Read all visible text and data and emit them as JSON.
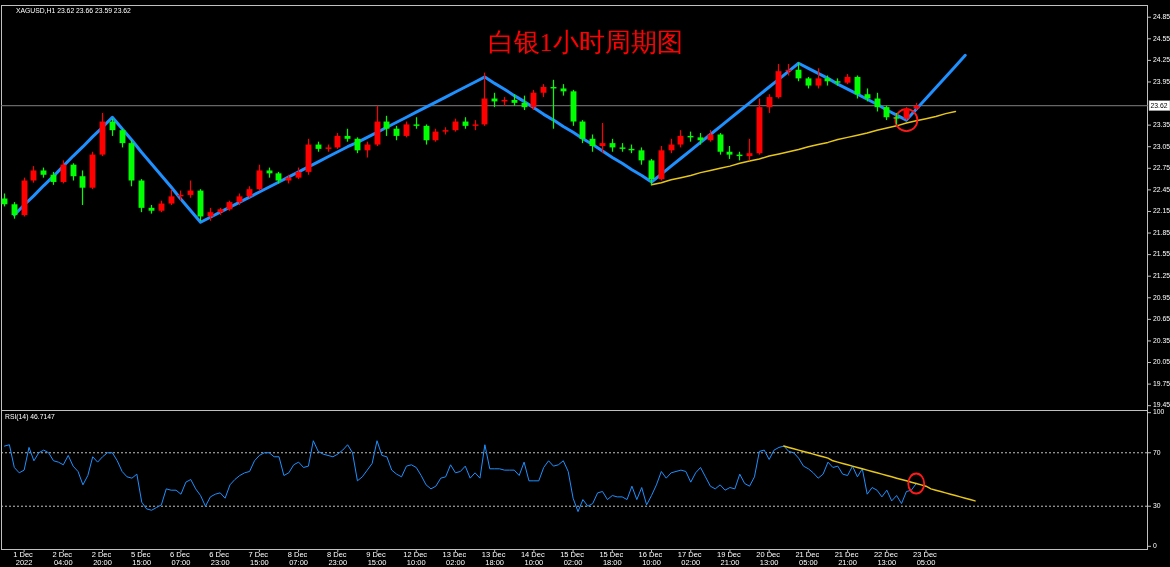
{
  "chart_data": [
    {
      "type": "candlestick",
      "title": "白银1小时周期图",
      "subtitle": "XAGUSD,H1 23.62 23.66 23.59 23.62",
      "categories": [
        null,
        null,
        null,
        null,
        null,
        null,
        null,
        null,
        null,
        null,
        null,
        null,
        null,
        null,
        null,
        null,
        null,
        null,
        null,
        null,
        null,
        null,
        null,
        null,
        null,
        null,
        null,
        null,
        null,
        null,
        null,
        null,
        null,
        null,
        null,
        null,
        null,
        null,
        null,
        null,
        null,
        null,
        null,
        null,
        null,
        null,
        null,
        null,
        null,
        null,
        null,
        null,
        null,
        null,
        null,
        null,
        null,
        null,
        null,
        null,
        null,
        null,
        null,
        null,
        null,
        null,
        null,
        null,
        null,
        null,
        null,
        null,
        null,
        null,
        null,
        null,
        null,
        null,
        null,
        null,
        null,
        null,
        null,
        null,
        null,
        null,
        null,
        null,
        null,
        null,
        null,
        null,
        null,
        null,
        null,
        null,
        null,
        null,
        null,
        null,
        null,
        null,
        null,
        null,
        null,
        null,
        null,
        null,
        null,
        null,
        null,
        null,
        null,
        null,
        null,
        null,
        null
      ],
      "ohlc": [
        [
          22.33,
          22.4,
          22.22,
          22.25
        ],
        [
          22.25,
          22.28,
          22.05,
          22.1
        ],
        [
          22.1,
          22.62,
          22.08,
          22.58
        ],
        [
          22.58,
          22.78,
          22.55,
          22.72
        ],
        [
          22.72,
          22.76,
          22.62,
          22.66
        ],
        [
          22.66,
          22.7,
          22.52,
          22.56
        ],
        [
          22.56,
          22.86,
          22.54,
          22.8
        ],
        [
          22.8,
          22.82,
          22.58,
          22.64
        ],
        [
          22.64,
          22.72,
          22.24,
          22.48
        ],
        [
          22.48,
          22.98,
          22.46,
          22.94
        ],
        [
          22.94,
          23.52,
          22.92,
          23.4
        ],
        [
          23.4,
          23.44,
          23.2,
          23.28
        ],
        [
          23.28,
          23.3,
          23.04,
          23.1
        ],
        [
          23.1,
          23.14,
          22.5,
          22.58
        ],
        [
          22.58,
          22.6,
          22.14,
          22.2
        ],
        [
          22.2,
          22.24,
          22.12,
          22.16
        ],
        [
          22.16,
          22.3,
          22.14,
          22.26
        ],
        [
          22.26,
          22.46,
          22.24,
          22.36
        ],
        [
          22.36,
          22.44,
          22.3,
          22.38
        ],
        [
          22.38,
          22.58,
          22.34,
          22.44
        ],
        [
          22.44,
          22.46,
          22.02,
          22.08
        ],
        [
          22.08,
          22.2,
          22.02,
          22.14
        ],
        [
          22.14,
          22.2,
          22.1,
          22.18
        ],
        [
          22.18,
          22.3,
          22.16,
          22.28
        ],
        [
          22.28,
          22.4,
          22.24,
          22.36
        ],
        [
          22.36,
          22.5,
          22.34,
          22.46
        ],
        [
          22.46,
          22.8,
          22.44,
          22.72
        ],
        [
          22.72,
          22.76,
          22.62,
          22.68
        ],
        [
          22.68,
          22.7,
          22.54,
          22.58
        ],
        [
          22.58,
          22.66,
          22.54,
          22.62
        ],
        [
          22.62,
          22.76,
          22.6,
          22.7
        ],
        [
          22.7,
          23.16,
          22.66,
          23.08
        ],
        [
          23.08,
          23.12,
          22.98,
          23.02
        ],
        [
          23.02,
          23.08,
          22.98,
          23.04
        ],
        [
          23.04,
          23.24,
          23.02,
          23.2
        ],
        [
          23.2,
          23.3,
          23.12,
          23.16
        ],
        [
          23.16,
          23.18,
          22.96,
          23.0
        ],
        [
          23.0,
          23.12,
          22.9,
          23.08
        ],
        [
          23.08,
          23.62,
          23.06,
          23.4
        ],
        [
          23.4,
          23.48,
          23.2,
          23.3
        ],
        [
          23.3,
          23.34,
          23.14,
          23.2
        ],
        [
          23.2,
          23.4,
          23.18,
          23.36
        ],
        [
          23.36,
          23.46,
          23.3,
          23.34
        ],
        [
          23.34,
          23.36,
          23.08,
          23.14
        ],
        [
          23.14,
          23.3,
          23.12,
          23.26
        ],
        [
          23.26,
          23.32,
          23.22,
          23.28
        ],
        [
          23.28,
          23.44,
          23.26,
          23.4
        ],
        [
          23.4,
          23.46,
          23.3,
          23.34
        ],
        [
          23.34,
          23.42,
          23.28,
          23.36
        ],
        [
          23.36,
          24.08,
          23.34,
          23.72
        ],
        [
          23.72,
          23.8,
          23.6,
          23.68
        ],
        [
          23.68,
          23.74,
          23.62,
          23.7
        ],
        [
          23.7,
          23.78,
          23.62,
          23.66
        ],
        [
          23.66,
          23.76,
          23.56,
          23.6
        ],
        [
          23.6,
          23.84,
          23.56,
          23.8
        ],
        [
          23.8,
          23.92,
          23.74,
          23.88
        ],
        [
          23.88,
          23.98,
          23.3,
          23.86
        ],
        [
          23.86,
          23.92,
          23.76,
          23.82
        ],
        [
          23.82,
          23.84,
          23.34,
          23.4
        ],
        [
          23.4,
          23.42,
          23.1,
          23.16
        ],
        [
          23.16,
          23.22,
          22.98,
          23.06
        ],
        [
          23.06,
          23.38,
          22.96,
          23.1
        ],
        [
          23.1,
          23.16,
          22.98,
          23.04
        ],
        [
          23.04,
          23.1,
          22.98,
          23.02
        ],
        [
          23.02,
          23.08,
          22.96,
          23.0
        ],
        [
          23.0,
          23.04,
          22.8,
          22.86
        ],
        [
          22.86,
          22.88,
          22.52,
          22.6
        ],
        [
          22.6,
          23.06,
          22.58,
          23.0
        ],
        [
          23.0,
          23.16,
          22.96,
          23.08
        ],
        [
          23.08,
          23.28,
          23.04,
          23.2
        ],
        [
          23.2,
          23.26,
          23.12,
          23.18
        ],
        [
          23.18,
          23.24,
          23.08,
          23.14
        ],
        [
          23.14,
          23.28,
          23.12,
          23.22
        ],
        [
          23.22,
          23.24,
          22.94,
          22.98
        ],
        [
          22.98,
          23.06,
          22.88,
          22.94
        ],
        [
          22.94,
          22.98,
          22.86,
          22.92
        ],
        [
          22.92,
          23.16,
          22.86,
          22.96
        ],
        [
          22.96,
          23.72,
          22.94,
          23.6
        ],
        [
          23.6,
          23.78,
          23.52,
          23.74
        ],
        [
          23.74,
          24.2,
          23.72,
          24.1
        ],
        [
          24.1,
          24.2,
          24.04,
          24.12
        ],
        [
          24.12,
          24.22,
          23.96,
          24.0
        ],
        [
          24.0,
          24.02,
          23.86,
          23.9
        ],
        [
          23.9,
          24.14,
          23.86,
          24.0
        ],
        [
          24.0,
          24.04,
          23.9,
          23.96
        ],
        [
          23.96,
          24.0,
          23.9,
          23.94
        ],
        [
          23.94,
          24.06,
          23.92,
          24.02
        ],
        [
          24.02,
          24.04,
          23.72,
          23.78
        ],
        [
          23.78,
          23.86,
          23.68,
          23.72
        ],
        [
          23.72,
          23.8,
          23.54,
          23.6
        ],
        [
          23.6,
          23.62,
          23.42,
          23.46
        ],
        [
          23.46,
          23.52,
          23.36,
          23.44
        ],
        [
          23.44,
          23.6,
          23.42,
          23.58
        ],
        [
          23.58,
          23.66,
          23.56,
          23.62
        ],
        null,
        null,
        null,
        null,
        null,
        null,
        null,
        null,
        null,
        null,
        null,
        null,
        null,
        null,
        null,
        null,
        null,
        null,
        null,
        null,
        null,
        null,
        null
      ],
      "colors": [
        "#00ff00",
        "#00ff00",
        "#ff0000",
        "#ff0000",
        "#00ff00",
        "#00ff00",
        "#ff0000",
        "#00ff00",
        "#00ff00",
        "#ff0000",
        "#ff0000",
        "#00ff00",
        "#00ff00",
        "#00ff00",
        "#00ff00",
        "#00ff00",
        "#ff0000",
        "#ff0000",
        "#ff0000",
        "#ff0000",
        "#00ff00",
        "#ff0000",
        "#ff0000",
        "#ff0000",
        "#ff0000",
        "#ff0000",
        "#ff0000",
        "#00ff00",
        "#00ff00",
        "#ff0000",
        "#ff0000",
        "#ff0000",
        "#00ff00",
        "#ff0000",
        "#ff0000",
        "#00ff00",
        "#00ff00",
        "#ff0000",
        "#ff0000",
        "#00ff00",
        "#00ff00",
        "#ff0000",
        "#00ff00",
        "#00ff00",
        "#ff0000",
        "#ff0000",
        "#ff0000",
        "#00ff00",
        "#ff0000",
        "#ff0000",
        "#00ff00",
        "#ff0000",
        "#00ff00",
        "#00ff00",
        "#ff0000",
        "#ff0000",
        "#00ff00",
        "#00ff00",
        "#00ff00",
        "#00ff00",
        "#00ff00",
        "#ff0000",
        "#00ff00",
        "#00ff00",
        "#00ff00",
        "#00ff00",
        "#00ff00",
        "#ff0000",
        "#ff0000",
        "#ff0000",
        "#00ff00",
        "#00ff00",
        "#ff0000",
        "#00ff00",
        "#00ff00",
        "#00ff00",
        "#ff0000",
        "#ff0000",
        "#ff0000",
        "#ff0000",
        "#ff0000",
        "#00ff00",
        "#00ff00",
        "#ff0000",
        "#00ff00",
        "#00ff00",
        "#ff0000",
        "#00ff00",
        "#00ff00",
        "#00ff00",
        "#00ff00",
        "#00ff00",
        "#ff0000",
        "#ff0000",
        null,
        null,
        null,
        null,
        null,
        null,
        null,
        null,
        null,
        null,
        null,
        null,
        null,
        null,
        null,
        null,
        null,
        null,
        null,
        null,
        null,
        null,
        null
      ],
      "series": [
        {
          "type": "line",
          "color": "#1e90ff",
          "values": [
            null,
            22.1,
            22.24,
            22.37,
            22.51,
            22.64,
            22.78,
            22.92,
            23.05,
            23.19,
            23.32,
            23.46,
            23.3,
            23.14,
            22.97,
            22.81,
            22.65,
            22.49,
            22.32,
            22.16,
            22.0,
            22.07,
            22.14,
            22.21,
            22.28,
            22.35,
            22.42,
            22.49,
            22.56,
            22.63,
            22.7,
            22.77,
            22.84,
            22.91,
            22.98,
            23.05,
            23.11,
            23.18,
            23.25,
            23.32,
            23.39,
            23.46,
            23.53,
            23.6,
            23.67,
            23.74,
            23.81,
            23.88,
            23.95,
            24.02,
            23.93,
            23.85,
            23.76,
            23.68,
            23.59,
            23.5,
            23.42,
            23.33,
            23.25,
            23.16,
            23.08,
            22.99,
            22.9,
            22.82,
            22.73,
            22.65,
            22.56,
            22.67,
            22.78,
            22.89,
            23.0,
            23.11,
            23.22,
            23.33,
            23.44,
            23.55,
            23.66,
            23.77,
            23.88,
            23.99,
            24.1,
            24.21,
            24.14,
            24.07,
            24.0,
            23.92,
            23.85,
            23.78,
            23.71,
            23.64,
            23.56,
            23.49,
            23.42,
            23.57,
            23.72,
            23.87,
            24.02,
            24.17,
            24.32,
            null,
            null,
            null,
            null,
            null,
            null,
            null,
            null,
            null,
            null,
            null,
            null,
            null,
            null,
            null,
            null,
            null,
            null
          ]
        },
        {
          "type": "line",
          "color": "#e6c619",
          "values": [
            null,
            null,
            null,
            null,
            null,
            null,
            null,
            null,
            null,
            null,
            null,
            null,
            null,
            null,
            null,
            null,
            null,
            null,
            null,
            null,
            null,
            null,
            null,
            null,
            null,
            null,
            null,
            null,
            null,
            null,
            null,
            null,
            null,
            null,
            null,
            null,
            null,
            null,
            null,
            null,
            null,
            null,
            null,
            null,
            null,
            null,
            null,
            null,
            null,
            null,
            null,
            null,
            null,
            null,
            null,
            null,
            null,
            null,
            null,
            null,
            null,
            null,
            null,
            null,
            null,
            null,
            22.52,
            22.55,
            22.59,
            22.62,
            22.65,
            22.69,
            22.72,
            22.75,
            22.78,
            22.82,
            22.85,
            22.88,
            22.92,
            22.95,
            22.98,
            23.01,
            23.05,
            23.08,
            23.11,
            23.15,
            23.18,
            23.21,
            23.24,
            23.28,
            23.31,
            23.34,
            23.38,
            23.41,
            23.44,
            23.47,
            23.51,
            23.54,
            null,
            null,
            null,
            null,
            null,
            null,
            null,
            null,
            null,
            null,
            null,
            null,
            null,
            null,
            null,
            null,
            null,
            null,
            null
          ]
        }
      ],
      "ylim": [
        19.39,
        25.02
      ],
      "yticks": [
        19.45,
        19.75,
        20.05,
        20.35,
        20.65,
        20.95,
        21.25,
        21.55,
        21.85,
        22.15,
        22.45,
        22.75,
        23.05,
        23.35,
        23.95,
        24.25,
        24.55,
        24.85
      ],
      "ref_lines": [
        {
          "axis": "y",
          "value": 23.62,
          "label": "23.62",
          "color": "#808080"
        }
      ],
      "tick_labels": "y"
    },
    {
      "type": "line",
      "title": "RSI(14) 46.7147",
      "categories": [
        null,
        null,
        null,
        null,
        "1 Dec 2022",
        null,
        null,
        null,
        null,
        null,
        null,
        null,
        "2 Dec 04:00",
        null,
        null,
        null,
        null,
        null,
        null,
        null,
        "2 Dec 20:00",
        null,
        null,
        null,
        null,
        null,
        null,
        null,
        "5 Dec 15:00",
        null,
        null,
        null,
        null,
        null,
        null,
        null,
        "6 Dec 07:00",
        null,
        null,
        null,
        null,
        null,
        null,
        null,
        "6 Dec 23:00",
        null,
        null,
        null,
        null,
        null,
        null,
        null,
        "7 Dec 15:00",
        null,
        null,
        null,
        null,
        null,
        null,
        null,
        "8 Dec 07:00",
        null,
        null,
        null,
        null,
        null,
        null,
        null,
        "8 Dec 23:00",
        null,
        null,
        null,
        null,
        null,
        null,
        null,
        "9 Dec 15:00",
        null,
        null,
        null,
        null,
        null,
        null,
        null,
        "12 Dec 10:00",
        null,
        null,
        null,
        null,
        null,
        null,
        null,
        "13 Dec 02:00",
        null,
        null,
        null,
        null,
        null,
        null,
        null,
        "13 Dec 18:00",
        null,
        null,
        null,
        null,
        null,
        null,
        null,
        "14 Dec 10:00",
        null,
        null,
        null,
        null,
        null,
        null,
        null,
        "15 Dec 02:00",
        null,
        null,
        null,
        null,
        null,
        null,
        null,
        "15 Dec 18:00",
        null,
        null,
        null,
        null,
        null,
        null,
        null,
        "16 Dec 10:00",
        null,
        null,
        null,
        null,
        null,
        null,
        null,
        "17 Dec 02:00",
        null,
        null,
        null,
        null,
        null,
        null,
        null,
        "19 Dec 21:00",
        null,
        null,
        null,
        null,
        null,
        null,
        null,
        "20 Dec 13:00",
        null,
        null,
        null,
        null,
        null,
        null,
        null,
        "21 Dec 05:00",
        null,
        null,
        null,
        null,
        null,
        null,
        null,
        "21 Dec 21:00",
        null,
        null,
        null,
        null,
        null,
        null,
        null,
        "22 Dec 13:00",
        null,
        null,
        null,
        null,
        null,
        null,
        null,
        "23 Dec 05:00",
        null,
        null,
        null,
        null,
        null,
        null,
        null,
        null,
        null,
        null,
        null,
        null,
        null,
        null,
        null,
        null,
        null,
        null,
        null,
        null,
        null,
        null,
        null,
        null,
        null,
        null,
        null,
        null,
        null,
        null,
        null,
        null,
        null,
        null,
        null,
        null,
        null,
        null,
        null,
        null,
        null,
        null,
        null,
        null,
        null
      ],
      "series": [
        {
          "color": "#1e90ff",
          "values": [
            75,
            76,
            59,
            55,
            57,
            74,
            64,
            70,
            72,
            70,
            64,
            63,
            61,
            68,
            60,
            56,
            46,
            53,
            67,
            63,
            67,
            70,
            70,
            64,
            56,
            52,
            51,
            54,
            33,
            28,
            27,
            29,
            31,
            43,
            42,
            42,
            39,
            48,
            50,
            43,
            38,
            30,
            37,
            39,
            40,
            36,
            46,
            50,
            53,
            55,
            56,
            64,
            68,
            70,
            70,
            67,
            67,
            53,
            55,
            61,
            63,
            59,
            60,
            79,
            71,
            69,
            68,
            67,
            69,
            72,
            76,
            70,
            49,
            52,
            57,
            62,
            79,
            68,
            67,
            57,
            54,
            52,
            60,
            61,
            59,
            53,
            46,
            43,
            45,
            51,
            52,
            61,
            55,
            56,
            60,
            51,
            55,
            51,
            76,
            58,
            58,
            58,
            57,
            57,
            57,
            53,
            63,
            49,
            49,
            49,
            59,
            64,
            60,
            61,
            64,
            56,
            36,
            26,
            35,
            30,
            32,
            40,
            41,
            35,
            38,
            37,
            37,
            35,
            45,
            35,
            44,
            31,
            38,
            46,
            56,
            51,
            55,
            56,
            57,
            56,
            48,
            55,
            59,
            52,
            45,
            43,
            46,
            42,
            44,
            43,
            54,
            47,
            45,
            52,
            71,
            72,
            65,
            72,
            74,
            75,
            71,
            70,
            66,
            60,
            58,
            55,
            51,
            54,
            63,
            59,
            60,
            54,
            53,
            60,
            52,
            58,
            39,
            44,
            42,
            37,
            42,
            34,
            38,
            32,
            41,
            42,
            47,
            null,
            null,
            null,
            null,
            null,
            null,
            null,
            null,
            null,
            null,
            null,
            null,
            null,
            null,
            null,
            null,
            null,
            null,
            null,
            null,
            null,
            null,
            null,
            null,
            null,
            null,
            null,
            null,
            null,
            null,
            null,
            null,
            null,
            null,
            null,
            null,
            null,
            null,
            null,
            null,
            null,
            null,
            null,
            null,
            null,
            null,
            null
          ]
        },
        {
          "color": "#e6c619",
          "values": [
            null,
            null,
            null,
            null,
            null,
            null,
            null,
            null,
            null,
            null,
            null,
            null,
            null,
            null,
            null,
            null,
            null,
            null,
            null,
            null,
            null,
            null,
            null,
            null,
            null,
            null,
            null,
            null,
            null,
            null,
            null,
            null,
            null,
            null,
            null,
            null,
            null,
            null,
            null,
            null,
            null,
            null,
            null,
            null,
            null,
            null,
            null,
            null,
            null,
            null,
            null,
            null,
            null,
            null,
            null,
            null,
            null,
            null,
            null,
            null,
            null,
            null,
            null,
            null,
            null,
            null,
            null,
            null,
            null,
            null,
            null,
            null,
            null,
            null,
            null,
            null,
            null,
            null,
            null,
            null,
            null,
            null,
            null,
            null,
            null,
            null,
            null,
            null,
            null,
            null,
            null,
            null,
            null,
            null,
            null,
            null,
            null,
            null,
            null,
            null,
            null,
            null,
            null,
            null,
            null,
            null,
            null,
            null,
            null,
            null,
            null,
            null,
            null,
            null,
            null,
            null,
            null,
            null,
            null,
            null,
            null,
            null,
            null,
            null,
            null,
            null,
            null,
            null,
            null,
            null,
            null,
            null,
            null,
            null,
            null,
            null,
            null,
            null,
            null,
            null,
            null,
            null,
            null,
            null,
            null,
            null,
            null,
            null,
            null,
            null,
            null,
            null,
            null,
            null,
            null,
            null,
            null,
            null,
            null,
            75,
            74,
            73,
            72,
            71,
            70,
            69,
            68,
            67,
            66,
            64,
            63,
            62,
            61,
            60,
            59,
            58,
            57,
            56,
            55,
            54,
            53,
            52,
            51,
            50,
            49,
            48,
            47,
            46,
            45,
            43,
            42,
            41,
            40,
            39,
            38,
            37,
            36,
            35,
            34,
            null,
            null,
            null,
            null,
            null,
            null,
            null,
            null,
            null,
            null,
            null,
            null,
            null,
            null,
            null,
            null,
            null,
            null,
            null,
            null,
            null,
            null,
            null,
            null,
            null,
            null,
            null,
            null,
            null,
            null,
            null,
            null,
            null,
            null,
            null
          ]
        }
      ],
      "ylim": [
        -2,
        102
      ],
      "yticks": [
        0,
        30,
        70,
        100
      ],
      "ref_lines": [
        {
          "axis": "y",
          "value": 70,
          "line_style": "dotted",
          "color": "#c0c0c0"
        },
        {
          "axis": "y",
          "value": 30,
          "line_style": "dotted",
          "color": "#c0c0c0"
        }
      ]
    }
  ]
}
